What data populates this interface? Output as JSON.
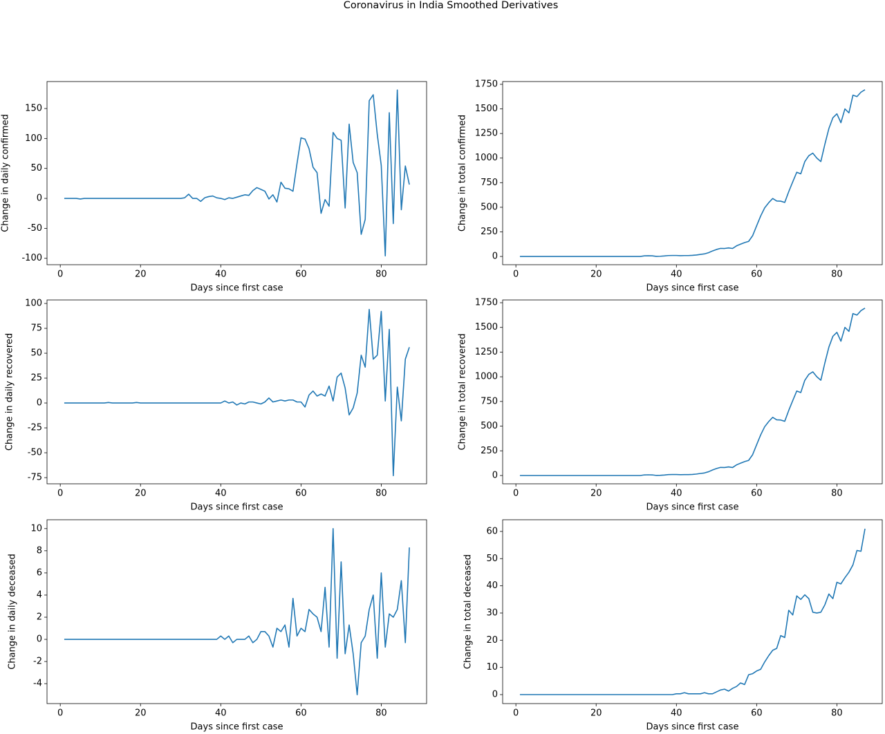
{
  "title": "Coronavirus in India Smoothed Derivatives",
  "chart_data": [
    {
      "type": "line",
      "xlabel": "Days since first case",
      "ylabel": "Change in daily confirmed",
      "color": "#1f77b4",
      "xlim": [
        -3.3,
        91.3
      ],
      "xticks": [
        0,
        20,
        40,
        60,
        80
      ],
      "ylim": [
        -110.7,
        195
      ],
      "yticks": [
        -100,
        -50,
        0,
        50,
        100,
        150
      ],
      "x": [
        1,
        2,
        3,
        4,
        5,
        6,
        7,
        8,
        9,
        10,
        11,
        12,
        13,
        14,
        15,
        16,
        17,
        18,
        19,
        20,
        21,
        22,
        23,
        24,
        25,
        26,
        27,
        28,
        29,
        30,
        31,
        32,
        33,
        34,
        35,
        36,
        37,
        38,
        39,
        40,
        41,
        42,
        43,
        44,
        45,
        46,
        47,
        48,
        49,
        50,
        51,
        52,
        53,
        54,
        55,
        56,
        57,
        58,
        59,
        60,
        61,
        62,
        63,
        64,
        65,
        66,
        67,
        68,
        69,
        70,
        71,
        72,
        73,
        74,
        75,
        76,
        77,
        78,
        79,
        80,
        81,
        82,
        83,
        84,
        85,
        86,
        87
      ],
      "values": [
        0,
        0,
        0,
        0,
        -1,
        0,
        0,
        0,
        0,
        0,
        0,
        0,
        0,
        0,
        0,
        0,
        0,
        0,
        0,
        0,
        0,
        0,
        0,
        0,
        0,
        0,
        0,
        0,
        0,
        0,
        1,
        7,
        0,
        0,
        -5,
        1,
        3,
        4,
        1,
        0,
        -2,
        1,
        0,
        2,
        4,
        6,
        5,
        13,
        18,
        15,
        12,
        -1,
        6,
        -6,
        27,
        17,
        16,
        12,
        58,
        101,
        99,
        83,
        52,
        43,
        -25,
        -2,
        -13,
        110,
        100,
        97,
        -16,
        124,
        60,
        43,
        -60,
        -35,
        163,
        173,
        107,
        55,
        -96,
        143,
        -42,
        181,
        -19,
        54,
        23
      ]
    },
    {
      "type": "line",
      "xlabel": "Days since first case",
      "ylabel": "Change in total confirmed",
      "color": "#1f77b4",
      "xlim": [
        -3.3,
        91.3
      ],
      "xticks": [
        0,
        20,
        40,
        60,
        80
      ],
      "ylim": [
        -84,
        1778
      ],
      "yticks": [
        0,
        250,
        500,
        750,
        1000,
        1250,
        1500,
        1750
      ],
      "x": [
        1,
        2,
        3,
        4,
        5,
        6,
        7,
        8,
        9,
        10,
        11,
        12,
        13,
        14,
        15,
        16,
        17,
        18,
        19,
        20,
        21,
        22,
        23,
        24,
        25,
        26,
        27,
        28,
        29,
        30,
        31,
        32,
        33,
        34,
        35,
        36,
        37,
        38,
        39,
        40,
        41,
        42,
        43,
        44,
        45,
        46,
        47,
        48,
        49,
        50,
        51,
        52,
        53,
        54,
        55,
        56,
        57,
        58,
        59,
        60,
        61,
        62,
        63,
        64,
        65,
        66,
        67,
        68,
        69,
        70,
        71,
        72,
        73,
        74,
        75,
        76,
        77,
        78,
        79,
        80,
        81,
        82,
        83,
        84,
        85,
        86,
        87
      ],
      "values": [
        0,
        0,
        0,
        0,
        0,
        0,
        0,
        0,
        0,
        0,
        0,
        0,
        0,
        0,
        0,
        0,
        0,
        0,
        0,
        0,
        0,
        0,
        0,
        0,
        0,
        0,
        0,
        0,
        0,
        0,
        0,
        6,
        7,
        6,
        1,
        2,
        5,
        9,
        10,
        10,
        8,
        9,
        9,
        11,
        15,
        21,
        26,
        38,
        56,
        71,
        82,
        81,
        87,
        81,
        108,
        125,
        141,
        153,
        211,
        312,
        411,
        494,
        546,
        589,
        564,
        562,
        549,
        659,
        759,
        856,
        840,
        964,
        1024,
        1050,
        1000,
        965,
        1140,
        1300,
        1410,
        1450,
        1360,
        1500,
        1460,
        1640,
        1625,
        1670,
        1695
      ]
    },
    {
      "type": "line",
      "xlabel": "Days since first case",
      "ylabel": "Change in daily recovered",
      "color": "#1f77b4",
      "xlim": [
        -3.3,
        91.3
      ],
      "xticks": [
        0,
        20,
        40,
        60,
        80
      ],
      "ylim": [
        -81.2,
        103.5
      ],
      "yticks": [
        -75,
        -50,
        -25,
        0,
        25,
        50,
        75,
        100
      ],
      "x": [
        1,
        2,
        3,
        4,
        5,
        6,
        7,
        8,
        9,
        10,
        11,
        12,
        13,
        14,
        15,
        16,
        17,
        18,
        19,
        20,
        21,
        22,
        23,
        24,
        25,
        26,
        27,
        28,
        29,
        30,
        31,
        32,
        33,
        34,
        35,
        36,
        37,
        38,
        39,
        40,
        41,
        42,
        43,
        44,
        45,
        46,
        47,
        48,
        49,
        50,
        51,
        52,
        53,
        54,
        55,
        56,
        57,
        58,
        59,
        60,
        61,
        62,
        63,
        64,
        65,
        66,
        67,
        68,
        69,
        70,
        71,
        72,
        73,
        74,
        75,
        76,
        77,
        78,
        79,
        80,
        81,
        82,
        83,
        84,
        85,
        86,
        87
      ],
      "values": [
        0,
        0,
        0,
        0,
        0,
        0,
        0,
        0,
        0,
        0,
        0,
        0.5,
        0,
        0,
        0,
        0,
        0,
        0,
        0.5,
        0,
        0,
        0,
        0,
        0,
        0,
        0,
        0,
        0,
        0,
        0,
        0,
        0,
        0,
        0,
        0,
        0,
        0,
        0,
        0,
        0,
        2,
        0,
        1,
        -2,
        0,
        -1,
        1,
        1,
        0,
        -1,
        1,
        5,
        1,
        2,
        3,
        2,
        3,
        3,
        1,
        1,
        -4,
        8,
        12,
        7,
        9,
        7,
        17,
        2,
        26,
        30,
        15,
        -12,
        -5,
        10,
        48,
        36,
        94,
        44,
        48,
        92,
        2,
        74,
        -73,
        16,
        -18,
        44,
        56
      ]
    },
    {
      "type": "line",
      "xlabel": "Days since first case",
      "ylabel": "Change in total recovered",
      "color": "#1f77b4",
      "xlim": [
        -3.3,
        91.3
      ],
      "xticks": [
        0,
        20,
        40,
        60,
        80
      ],
      "ylim": [
        -84,
        1778
      ],
      "yticks": [
        0,
        250,
        500,
        750,
        1000,
        1250,
        1500,
        1750
      ],
      "x": [
        1,
        2,
        3,
        4,
        5,
        6,
        7,
        8,
        9,
        10,
        11,
        12,
        13,
        14,
        15,
        16,
        17,
        18,
        19,
        20,
        21,
        22,
        23,
        24,
        25,
        26,
        27,
        28,
        29,
        30,
        31,
        32,
        33,
        34,
        35,
        36,
        37,
        38,
        39,
        40,
        41,
        42,
        43,
        44,
        45,
        46,
        47,
        48,
        49,
        50,
        51,
        52,
        53,
        54,
        55,
        56,
        57,
        58,
        59,
        60,
        61,
        62,
        63,
        64,
        65,
        66,
        67,
        68,
        69,
        70,
        71,
        72,
        73,
        74,
        75,
        76,
        77,
        78,
        79,
        80,
        81,
        82,
        83,
        84,
        85,
        86,
        87
      ],
      "values": [
        0,
        0,
        0,
        0,
        0,
        0,
        0,
        0,
        0,
        0,
        0,
        0,
        0,
        0,
        0,
        0,
        0,
        0,
        0,
        0,
        0,
        0,
        0,
        0,
        0,
        0,
        0,
        0,
        0,
        0,
        0,
        6,
        7,
        6,
        1,
        2,
        5,
        9,
        10,
        10,
        8,
        9,
        9,
        11,
        15,
        21,
        26,
        38,
        56,
        71,
        82,
        81,
        87,
        81,
        108,
        125,
        141,
        153,
        211,
        312,
        411,
        494,
        546,
        589,
        564,
        562,
        549,
        659,
        759,
        856,
        840,
        964,
        1024,
        1050,
        1000,
        965,
        1140,
        1300,
        1410,
        1450,
        1360,
        1500,
        1460,
        1640,
        1625,
        1670,
        1695
      ]
    },
    {
      "type": "line",
      "xlabel": "Days since first case",
      "ylabel": "Change in daily deceased",
      "color": "#1f77b4",
      "xlim": [
        -3.3,
        91.3
      ],
      "xticks": [
        0,
        20,
        40,
        60,
        80
      ],
      "ylim": [
        -5.8,
        10.8
      ],
      "yticks": [
        -4,
        -2,
        0,
        2,
        4,
        6,
        8,
        10
      ],
      "x": [
        1,
        2,
        3,
        4,
        5,
        6,
        7,
        8,
        9,
        10,
        11,
        12,
        13,
        14,
        15,
        16,
        17,
        18,
        19,
        20,
        21,
        22,
        23,
        24,
        25,
        26,
        27,
        28,
        29,
        30,
        31,
        32,
        33,
        34,
        35,
        36,
        37,
        38,
        39,
        40,
        41,
        42,
        43,
        44,
        45,
        46,
        47,
        48,
        49,
        50,
        51,
        52,
        53,
        54,
        55,
        56,
        57,
        58,
        59,
        60,
        61,
        62,
        63,
        64,
        65,
        66,
        67,
        68,
        69,
        70,
        71,
        72,
        73,
        74,
        75,
        76,
        77,
        78,
        79,
        80,
        81,
        82,
        83,
        84,
        85,
        86,
        87
      ],
      "values": [
        0,
        0,
        0,
        0,
        0,
        0,
        0,
        0,
        0,
        0,
        0,
        0,
        0,
        0,
        0,
        0,
        0,
        0,
        0,
        0,
        0,
        0,
        0,
        0,
        0,
        0,
        0,
        0,
        0,
        0,
        0,
        0,
        0,
        0,
        0,
        0,
        0,
        0,
        0,
        0.3,
        0,
        0.3,
        -0.3,
        0,
        0,
        0,
        0.3,
        -0.3,
        0,
        0.7,
        0.7,
        0.3,
        -0.7,
        1,
        0.7,
        1.3,
        -0.7,
        3.7,
        0.3,
        1,
        0.7,
        2.7,
        2.3,
        2,
        0.7,
        4.7,
        -0.7,
        10,
        -1.7,
        7,
        -1.3,
        1.3,
        -1.3,
        -5,
        -0.3,
        0.3,
        2.7,
        4,
        -1.7,
        6,
        -0.7,
        2.3,
        2,
        2.7,
        5.3,
        -0.3,
        8.3
      ]
    },
    {
      "type": "line",
      "xlabel": "Days since first case",
      "ylabel": "Change in total deceased",
      "color": "#1f77b4",
      "xlim": [
        -3.3,
        91.3
      ],
      "xticks": [
        0,
        20,
        40,
        60,
        80
      ],
      "ylim": [
        -3.3,
        64.3
      ],
      "yticks": [
        0,
        10,
        20,
        30,
        40,
        50,
        60
      ],
      "x": [
        1,
        2,
        3,
        4,
        5,
        6,
        7,
        8,
        9,
        10,
        11,
        12,
        13,
        14,
        15,
        16,
        17,
        18,
        19,
        20,
        21,
        22,
        23,
        24,
        25,
        26,
        27,
        28,
        29,
        30,
        31,
        32,
        33,
        34,
        35,
        36,
        37,
        38,
        39,
        40,
        41,
        42,
        43,
        44,
        45,
        46,
        47,
        48,
        49,
        50,
        51,
        52,
        53,
        54,
        55,
        56,
        57,
        58,
        59,
        60,
        61,
        62,
        63,
        64,
        65,
        66,
        67,
        68,
        69,
        70,
        71,
        72,
        73,
        74,
        75,
        76,
        77,
        78,
        79,
        80,
        81,
        82,
        83,
        84,
        85,
        86,
        87
      ],
      "values": [
        0,
        0,
        0,
        0,
        0,
        0,
        0,
        0,
        0,
        0,
        0,
        0,
        0,
        0,
        0,
        0,
        0,
        0,
        0,
        0,
        0,
        0,
        0,
        0,
        0,
        0,
        0,
        0,
        0,
        0,
        0,
        0,
        0,
        0,
        0,
        0,
        0,
        0,
        0,
        0.3,
        0.3,
        0.7,
        0.3,
        0.3,
        0.3,
        0.3,
        0.7,
        0.3,
        0.3,
        1,
        1.7,
        2,
        1.3,
        2.3,
        3,
        4.3,
        3.7,
        7.3,
        7.7,
        8.7,
        9.3,
        12,
        14.3,
        16.3,
        17,
        21.7,
        21,
        31,
        29.3,
        36.3,
        35,
        36.7,
        35.3,
        30.3,
        30,
        30.3,
        33,
        37,
        35.3,
        41.3,
        40.7,
        43,
        45,
        47.7,
        53,
        52.7,
        61
      ]
    }
  ]
}
